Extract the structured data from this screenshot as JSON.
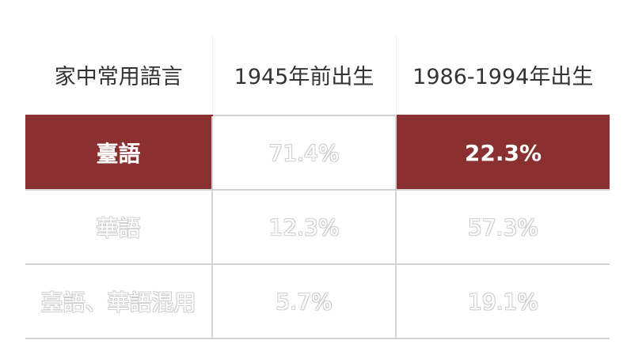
{
  "table": {
    "headers": [
      "家中常用語言",
      "1945年前出生",
      "1986-1994年出生"
    ],
    "rows": [
      {
        "label": "臺語",
        "col1": "71.4%",
        "col2": "22.3%"
      },
      {
        "label": "華語",
        "col1": "12.3%",
        "col2": "57.3%"
      },
      {
        "label": "臺語、華語混用",
        "col1": "5.7%",
        "col2": "19.1%"
      }
    ]
  },
  "colors": {
    "highlight": "#8b3030",
    "header_text": "#333333",
    "border": "#d3d3d3"
  }
}
